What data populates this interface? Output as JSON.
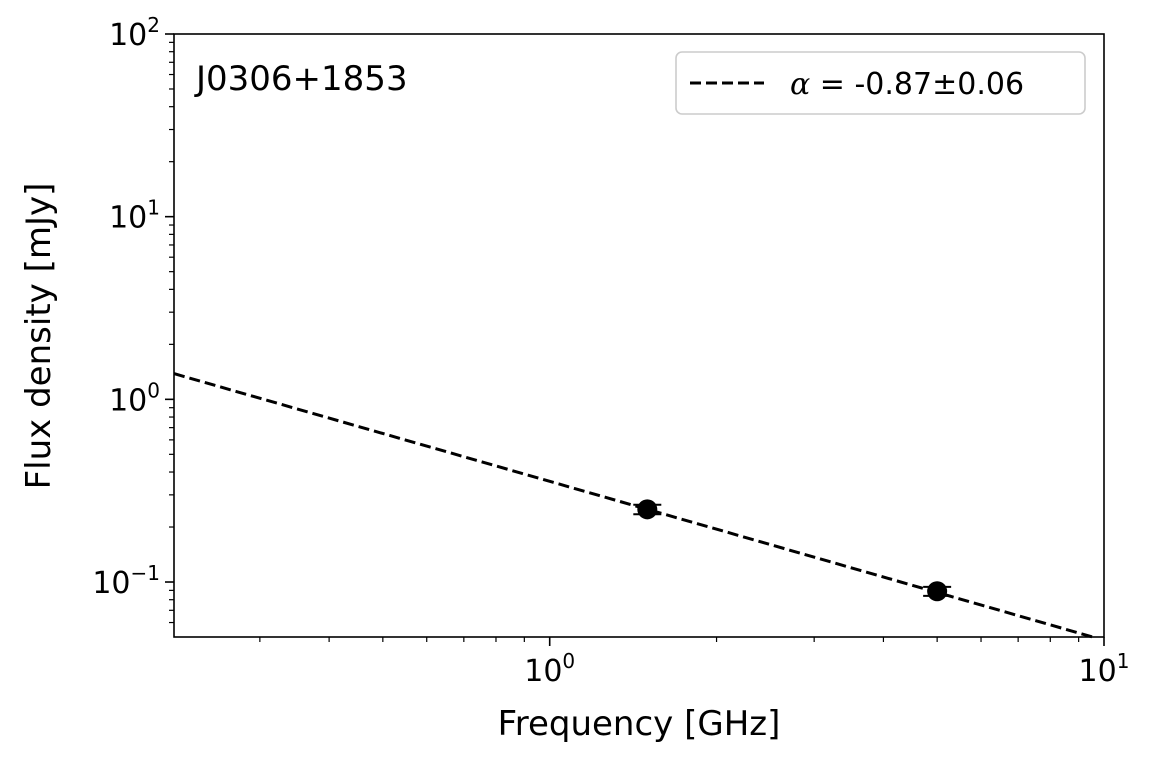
{
  "chart_data": {
    "type": "line",
    "title": "",
    "annotation": "J0306+1853",
    "xlabel": "Frequency [GHz]",
    "ylabel": "Flux density [mJy]",
    "xscale": "log",
    "yscale": "log",
    "xlim": [
      0.21,
      10
    ],
    "ylim": [
      0.05,
      100
    ],
    "x_ticks": [
      {
        "value": 1,
        "base": "10",
        "exp": "0"
      },
      {
        "value": 10,
        "base": "10",
        "exp": "1"
      }
    ],
    "y_ticks": [
      {
        "value": 0.1,
        "base": "10",
        "exp": "−1"
      },
      {
        "value": 1,
        "base": "10",
        "exp": "0"
      },
      {
        "value": 10,
        "base": "10",
        "exp": "1"
      },
      {
        "value": 100,
        "base": "10",
        "exp": "2"
      }
    ],
    "points": [
      {
        "x": 1.5,
        "y": 0.25,
        "yerr": 0.015
      },
      {
        "x": 5.0,
        "y": 0.089,
        "yerr": 0.005
      }
    ],
    "fit": {
      "style": "dashed",
      "color": "#000000",
      "alpha": -0.87,
      "reference_x": 1.5,
      "reference_y": 0.25
    },
    "legend": {
      "position": "upper right",
      "symbol": "α",
      "text": " = -0.87±0.06"
    },
    "marker_color": "#000000"
  }
}
